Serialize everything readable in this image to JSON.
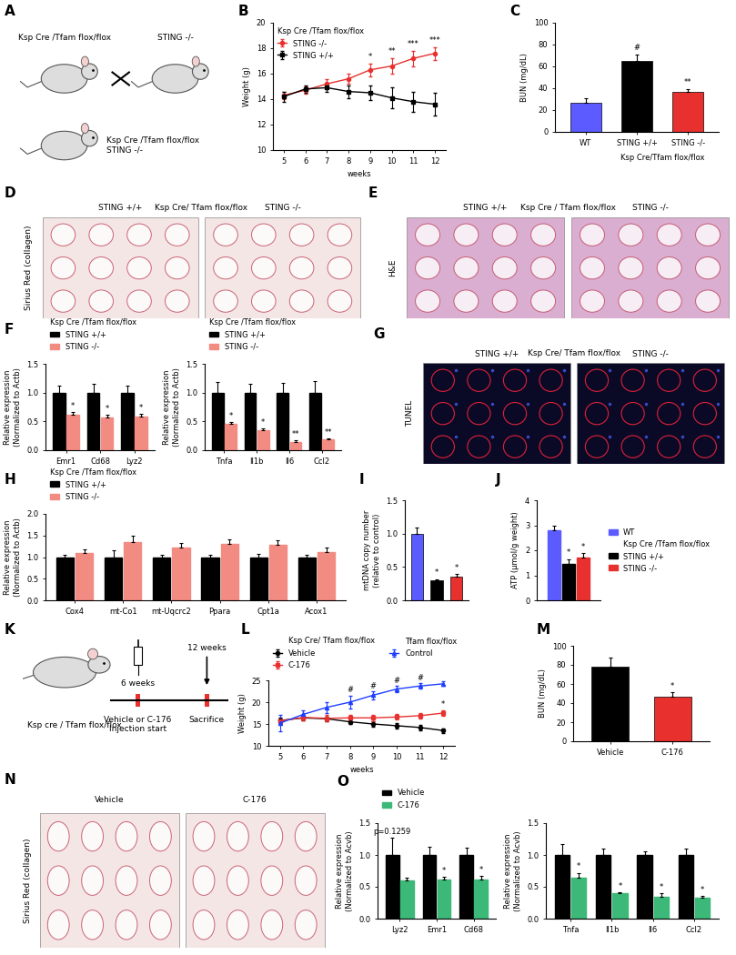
{
  "chart_data": [
    {
      "panel": "B",
      "type": "line",
      "subtitle": "Ksp Cre /Tfam flox/flox",
      "x": [
        5,
        6,
        7,
        8,
        9,
        10,
        11,
        12
      ],
      "xlim": [
        4.5,
        12.5
      ],
      "xticks": [
        5,
        6,
        7,
        8,
        9,
        10,
        11,
        12
      ],
      "ylim": [
        10,
        20
      ],
      "yticks": [
        10,
        12,
        14,
        16,
        18,
        20
      ],
      "xlabel": "weeks",
      "ylabel": "Weight (g)",
      "legend": "upper left",
      "series": [
        {
          "name": "STING -/-",
          "color": "#e8312f",
          "marker": "circle",
          "values": [
            14.3,
            14.7,
            15.2,
            15.6,
            16.3,
            16.6,
            17.2,
            17.6
          ],
          "errors": [
            0.3,
            0.3,
            0.4,
            0.4,
            0.5,
            0.6,
            0.6,
            0.5
          ],
          "significance": [
            null,
            null,
            null,
            null,
            "*",
            "**",
            "***",
            "***"
          ]
        },
        {
          "name": "STING +/+",
          "color": "#000000",
          "marker": "square",
          "values": [
            14.2,
            14.8,
            14.9,
            14.6,
            14.5,
            14.1,
            13.8,
            13.6
          ],
          "errors": [
            0.4,
            0.3,
            0.3,
            0.5,
            0.6,
            0.8,
            0.8,
            0.9
          ]
        }
      ]
    },
    {
      "panel": "C",
      "type": "bar",
      "categories": [
        "WT",
        "STING +/+",
        "STING -/-"
      ],
      "values": [
        27,
        65,
        37
      ],
      "errors": [
        4,
        6,
        2.5
      ],
      "colors": [
        "#5b5bff",
        "#000000",
        "#e8312f"
      ],
      "significance": [
        null,
        "#",
        "**"
      ],
      "ylim": [
        0,
        100
      ],
      "yticks": [
        0,
        20,
        40,
        60,
        80,
        100
      ],
      "ylabel": "BUN (mg/dL)",
      "subtitle": "Ksp Cre/Tfam flox/flox"
    },
    {
      "panel": "F",
      "type": "bar",
      "categories": [
        "Emr1",
        "Cd68",
        "Lyz2"
      ],
      "subtitle": "Ksp Cre /Tfam flox/flox",
      "legend": "top",
      "ylim": [
        0,
        1.5
      ],
      "yticks": [
        {
          "value": 0,
          "label": "0.0"
        },
        0.5,
        {
          "value": 1,
          "label": "1.0"
        },
        1.5
      ],
      "ylabel": "Relative expression\n(Normalized to Actb)",
      "series": [
        {
          "name": "STING +/+",
          "color": "#000000",
          "values": [
            1,
            1,
            1
          ],
          "errors": [
            0.12,
            0.15,
            0.12
          ]
        },
        {
          "name": "STING -/-",
          "color": "#f28b82",
          "values": [
            0.62,
            0.57,
            0.58
          ],
          "errors": [
            0.04,
            0.05,
            0.05
          ],
          "significance": [
            "*",
            "*",
            "*"
          ]
        }
      ]
    },
    {
      "panel": "F",
      "type": "bar",
      "categories": [
        "Tnfa",
        "Il1b",
        "Il6",
        "Ccl2"
      ],
      "subtitle": "Ksp Cre /Tfam flox/flox",
      "legend": "top",
      "ylim": [
        0,
        1.5
      ],
      "yticks": [
        {
          "value": 0,
          "label": "0.0"
        },
        0.5,
        {
          "value": 1,
          "label": "1.0"
        },
        1.5
      ],
      "ylabel": "Relative expression\n(Normalized to Actb)",
      "series": [
        {
          "name": "STING +/+",
          "color": "#000000",
          "values": [
            1,
            1,
            1,
            1
          ],
          "errors": [
            0.18,
            0.15,
            0.17,
            0.2
          ]
        },
        {
          "name": "STING -/-",
          "color": "#f28b82",
          "values": [
            0.46,
            0.35,
            0.15,
            0.19
          ],
          "errors": [
            0.03,
            0.03,
            0.02,
            0.02
          ],
          "significance": [
            "*",
            "*",
            "**",
            "**"
          ]
        }
      ]
    },
    {
      "panel": "H",
      "type": "bar",
      "categories": [
        "Cox4",
        "mt-Co1",
        "mt-Uqcrc2",
        "Ppara",
        "Cpt1a",
        "Acox1"
      ],
      "subtitle": "Ksp Cre /Tfam flox/flox",
      "legend": "top",
      "ylim": [
        0,
        2
      ],
      "yticks": [
        {
          "value": 0,
          "label": "0.0"
        },
        0.5,
        {
          "value": 1,
          "label": "1.0"
        },
        1.5,
        {
          "value": 2,
          "label": "2.0"
        }
      ],
      "ylabel": "Relative expression\n(Normalized to Actb)",
      "series": [
        {
          "name": "STING +/+",
          "color": "#000000",
          "values": [
            1,
            1,
            1,
            1,
            1,
            1
          ],
          "errors": [
            0.05,
            0.15,
            0.05,
            0.05,
            0.08,
            0.05
          ]
        },
        {
          "name": "STING -/-",
          "color": "#f28b82",
          "values": [
            1.1,
            1.35,
            1.22,
            1.3,
            1.28,
            1.12
          ],
          "errors": [
            0.08,
            0.15,
            0.1,
            0.12,
            0.12,
            0.1
          ]
        }
      ]
    },
    {
      "panel": "I",
      "type": "bar",
      "categories": [
        null,
        null,
        null
      ],
      "values": [
        1.0,
        0.3,
        0.35
      ],
      "errors": [
        0.09,
        0.02,
        0.04
      ],
      "colors": [
        "#5b5bff",
        "#000000",
        "#e8312f"
      ],
      "significance": [
        null,
        "*",
        "*"
      ],
      "ylim": [
        0,
        1.5
      ],
      "yticks": [
        {
          "value": 0,
          "label": "0.0"
        },
        0.5,
        {
          "value": 1,
          "label": "1.0"
        },
        1.5
      ],
      "ylabel": "mtDNA copy number\n(relative to control)"
    },
    {
      "panel": "J",
      "type": "bar",
      "categories": [
        null
      ],
      "legend": "right",
      "subtitle": "Ksp Cre /Tfam flox/flox",
      "ylim": [
        0,
        4
      ],
      "yticks": [
        0,
        1,
        2,
        3,
        4
      ],
      "ylabel": "ATP (µmol/g weight)",
      "series": [
        {
          "name": "WT",
          "color": "#5b5bff",
          "values": [
            2.8
          ],
          "errors": [
            0.2
          ]
        },
        {
          "name": "STING +/+",
          "color": "#000000",
          "values": [
            1.45
          ],
          "errors": [
            0.2
          ],
          "significance": [
            "*"
          ]
        },
        {
          "name": "STING -/-",
          "color": "#e8312f",
          "values": [
            1.7
          ],
          "errors": [
            0.18
          ],
          "significance": [
            "*"
          ]
        }
      ]
    },
    {
      "panel": "L",
      "type": "line",
      "subtitle": "Ksp Cre/ Tfam flox/flox",
      "annotations": [
        "Tfam flox/flox"
      ],
      "x": [
        5,
        6,
        7,
        8,
        9,
        10,
        11,
        12
      ],
      "xlim": [
        4.5,
        12.5
      ],
      "xticks": [
        5,
        6,
        7,
        8,
        9,
        10,
        11,
        12
      ],
      "ylim": [
        10,
        25
      ],
      "yticks": [
        10,
        15,
        20,
        25
      ],
      "xlabel": "weeks",
      "ylabel": "Weight (g)",
      "legend": "top",
      "series": [
        {
          "name": "Vehicle",
          "color": "#000000",
          "marker": "circle",
          "values": [
            15.8,
            16.4,
            16.2,
            15.5,
            15.0,
            14.6,
            14.2,
            13.5
          ],
          "errors": [
            0.6,
            0.6,
            0.5,
            0.6,
            0.6,
            0.6,
            0.6,
            0.5
          ]
        },
        {
          "name": "C-176",
          "color": "#e8312f",
          "marker": "square",
          "values": [
            15.7,
            16.5,
            16.3,
            16.4,
            16.4,
            16.6,
            16.9,
            17.5
          ],
          "errors": [
            0.6,
            0.6,
            0.7,
            0.7,
            0.7,
            0.6,
            0.6,
            0.7
          ],
          "significance": [
            null,
            null,
            null,
            null,
            null,
            null,
            null,
            "*"
          ]
        },
        {
          "name": "Control",
          "color": "#1f3fff",
          "marker": "triangle",
          "values": [
            15.2,
            17.2,
            18.8,
            20.0,
            21.6,
            23.0,
            23.7,
            24.2
          ],
          "errors": [
            1.8,
            1.0,
            1.2,
            1.5,
            0.9,
            0.7,
            0.6,
            0.5
          ],
          "significance": [
            null,
            null,
            null,
            "#",
            "#",
            "#",
            "#",
            null
          ]
        }
      ]
    },
    {
      "panel": "M",
      "type": "bar",
      "categories": [
        "Vehicle",
        "C-176"
      ],
      "values": [
        78,
        47
      ],
      "errors": [
        10,
        4
      ],
      "colors": [
        "#000000",
        "#e8312f"
      ],
      "significance": [
        null,
        "*"
      ],
      "ylim": [
        0,
        100
      ],
      "yticks": [
        0,
        20,
        40,
        60,
        80,
        100
      ],
      "ylabel": "BUN (mg/dL)"
    },
    {
      "panel": "O",
      "type": "bar",
      "categories": [
        "Lyz2",
        "Emr1",
        "Cd68"
      ],
      "legend": "top",
      "ylim": [
        0,
        1.5
      ],
      "yticks": [
        {
          "value": 0,
          "label": "0.0"
        },
        0.5,
        {
          "value": 1,
          "label": "1.0"
        },
        1.5
      ],
      "ylabel": "Relative expression\n(Normalized to Acvb)",
      "series": [
        {
          "name": "Vehicle",
          "color": "#000000",
          "values": [
            1,
            1,
            1
          ],
          "errors": [
            0.27,
            0.13,
            0.12
          ],
          "significance": [
            "p=0.1259",
            null,
            null
          ]
        },
        {
          "name": "C-176",
          "color": "#3cb878",
          "values": [
            0.6,
            0.62,
            0.62
          ],
          "errors": [
            0.04,
            0.04,
            0.05
          ],
          "significance": [
            null,
            "*",
            "*"
          ]
        }
      ]
    },
    {
      "panel": "O",
      "type": "bar",
      "categories": [
        "Tnfa",
        "Il1b",
        "Il6",
        "Ccl2"
      ],
      "ylim": [
        0,
        1.5
      ],
      "yticks": [
        {
          "value": 0,
          "label": "0.0"
        },
        0.5,
        {
          "value": 1,
          "label": "1.0"
        },
        1.5
      ],
      "ylabel": "Relative expression\n(Normalized to Acvb)",
      "series": [
        {
          "name": "Vehicle",
          "color": "#000000",
          "values": [
            1,
            1,
            1,
            1
          ],
          "errors": [
            0.17,
            0.1,
            0.06,
            0.1
          ]
        },
        {
          "name": "C-176",
          "color": "#3cb878",
          "values": [
            0.64,
            0.4,
            0.35,
            0.33
          ],
          "errors": [
            0.08,
            0.02,
            0.05,
            0.03
          ],
          "significance": [
            "*",
            "*",
            "*",
            "*"
          ]
        }
      ]
    }
  ],
  "images": [
    {
      "panel": "A",
      "type": "cross_diagram",
      "parent_1": "Ksp Cre /Tfam flox/flox",
      "parent_2": "STING -/-",
      "offspring": "Ksp Cre /Tfam flox/flox\nSTING -/-"
    },
    {
      "panel": "D",
      "type": "micrograph",
      "stain": "Sirius Red (collagen)",
      "labels": [
        "STING +/+",
        "Ksp Cre/ Tfam flox/flox",
        "STING -/-"
      ],
      "color": "#f3e6e4"
    },
    {
      "panel": "E",
      "type": "micrograph",
      "stain": "H&E",
      "labels": [
        "STING +/+",
        "Ksp Cre / Tfam flox/flox",
        "STING -/-"
      ],
      "color": "#d9aed0"
    },
    {
      "panel": "G",
      "type": "micrograph",
      "stain": "TUNEL",
      "labels": [
        "STING +/+",
        "Ksp Cre/ Tfam flox/flox",
        "STING -/-"
      ],
      "color": "#0a0a26"
    },
    {
      "panel": "K",
      "type": "timeline_diagram",
      "label": "Ksp cre / Tfam flox/flox",
      "start": "6 weeks",
      "end": "12 weeks",
      "start_note": "Vehicle or C-176\nInjection start",
      "end_note": "Sacrifice"
    },
    {
      "panel": "N",
      "type": "micrograph",
      "stain": "Sirius Red (collagen)",
      "labels": [
        "Vehicle",
        "C-176"
      ],
      "color": "#f3e6e4"
    }
  ]
}
